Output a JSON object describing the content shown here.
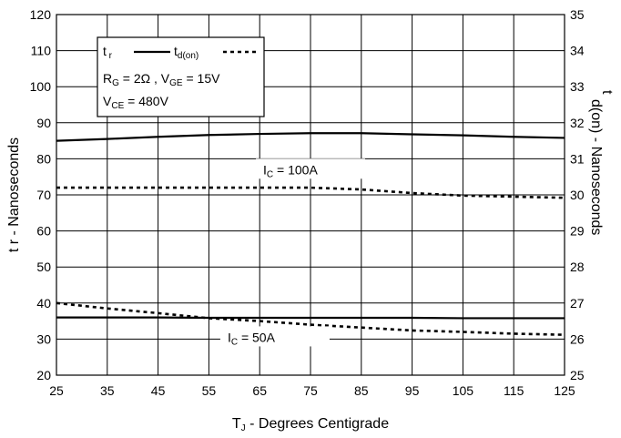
{
  "chart_data": {
    "type": "line",
    "x": [
      25,
      35,
      45,
      55,
      65,
      75,
      85,
      95,
      105,
      115,
      125
    ],
    "xlabel": "T",
    "xlabel_sub": "J",
    "xlabel_rest": " - Degrees Centigrade",
    "ylabel": "t r - Nanoseconds",
    "y2label": "d(on) - Nanoseconds",
    "y2label_prefix": "t",
    "xlim": [
      25,
      125
    ],
    "ylim": [
      20,
      120
    ],
    "y2lim": [
      25,
      35
    ],
    "xticks": [
      25,
      35,
      45,
      55,
      65,
      75,
      85,
      95,
      105,
      115,
      125
    ],
    "yticks": [
      20,
      30,
      40,
      50,
      60,
      70,
      80,
      90,
      100,
      110,
      120
    ],
    "y2ticks": [
      25,
      26,
      27,
      28,
      29,
      30,
      31,
      32,
      33,
      34,
      35
    ],
    "grid": true,
    "series": [
      {
        "name": "t r",
        "axis": "left",
        "style": "solid",
        "label": "IC = 100A",
        "values": [
          85,
          85.5,
          86.1,
          86.6,
          86.9,
          87.1,
          87.1,
          86.8,
          86.5,
          86.1,
          85.8
        ]
      },
      {
        "name": "t d(on)",
        "axis": "right",
        "style": "dotted",
        "label": "IC = 100A",
        "values": [
          30.2,
          30.2,
          30.2,
          30.2,
          30.2,
          30.2,
          30.15,
          30.05,
          29.98,
          29.95,
          29.92
        ]
      },
      {
        "name": "t r",
        "axis": "left",
        "style": "solid",
        "label": "IC = 50A",
        "values": [
          36,
          36,
          36,
          35.9,
          35.9,
          35.9,
          35.9,
          35.9,
          35.8,
          35.8,
          35.8
        ]
      },
      {
        "name": "t d(on)",
        "axis": "right",
        "style": "dotted",
        "label": "IC = 50A",
        "values": [
          27,
          26.85,
          26.72,
          26.58,
          26.5,
          26.4,
          26.32,
          26.24,
          26.2,
          26.15,
          26.12
        ]
      }
    ],
    "annotations": [
      {
        "main": "I",
        "sub": "C",
        "rest": " = 100A",
        "x": 75,
        "y": 77
      },
      {
        "main": "I",
        "sub": "C",
        "rest": " = 50A",
        "x": 68,
        "y": 30.5
      }
    ],
    "legend": {
      "entries": [
        {
          "main": "t",
          "sub": "r",
          "style": "solid"
        },
        {
          "main": "t",
          "sub": "d(on)",
          "style": "dotted"
        }
      ],
      "conditions": [
        [
          {
            "t": "R"
          },
          {
            "t": "G",
            "sub": true
          },
          {
            "t": " = 2Ω ,  V"
          },
          {
            "t": "GE",
            "sub": true
          },
          {
            "t": " = 15V"
          }
        ],
        [
          {
            "t": "V"
          },
          {
            "t": "CE",
            "sub": true
          },
          {
            "t": " = 480V"
          }
        ]
      ],
      "placement": "top-left"
    }
  }
}
